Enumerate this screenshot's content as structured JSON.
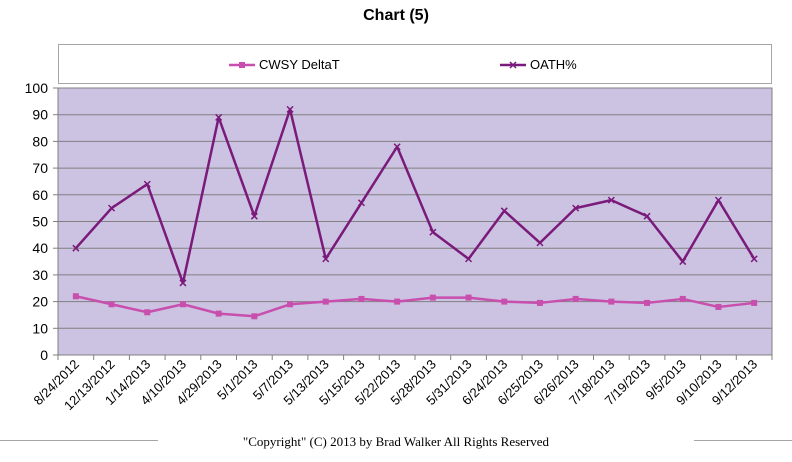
{
  "chart_data": {
    "type": "line",
    "title": "Chart (5)",
    "xlabel": "",
    "ylabel": "",
    "ylim": [
      0,
      100
    ],
    "yticks": [
      0,
      10,
      20,
      30,
      40,
      50,
      60,
      70,
      80,
      90,
      100
    ],
    "grid": true,
    "legend_position": "top",
    "plot_background": "#ccc2e2",
    "categories": [
      "8/24/2012",
      "12/13/2012",
      "1/14/2013",
      "4/10/2013",
      "4/29/2013",
      "5/1/2013",
      "5/7/2013",
      "5/13/2013",
      "5/15/2013",
      "5/22/2013",
      "5/28/2013",
      "5/31/2013",
      "6/24/2013",
      "6/25/2013",
      "6/26/2013",
      "7/18/2013",
      "7/19/2013",
      "9/5/2013",
      "9/10/2013",
      "9/12/2013"
    ],
    "series": [
      {
        "name": "CWSY DeltaT",
        "color": "#c84fad",
        "marker": "square",
        "values": [
          22,
          19,
          16,
          19,
          15.5,
          14.5,
          19,
          20,
          21,
          20,
          21.5,
          21.5,
          20,
          19.5,
          21,
          20,
          19.5,
          21,
          18,
          19.5
        ]
      },
      {
        "name": "OATH%",
        "color": "#7a1a7a",
        "marker": "x",
        "values": [
          40,
          55,
          64,
          27,
          89,
          52,
          92,
          36,
          57,
          78,
          46,
          36,
          54,
          42,
          55,
          58,
          52,
          35,
          58,
          36
        ]
      }
    ]
  },
  "footer": {
    "copyright": "\"Copyright\" (C) 2013 by Brad Walker  All Rights Reserved"
  }
}
